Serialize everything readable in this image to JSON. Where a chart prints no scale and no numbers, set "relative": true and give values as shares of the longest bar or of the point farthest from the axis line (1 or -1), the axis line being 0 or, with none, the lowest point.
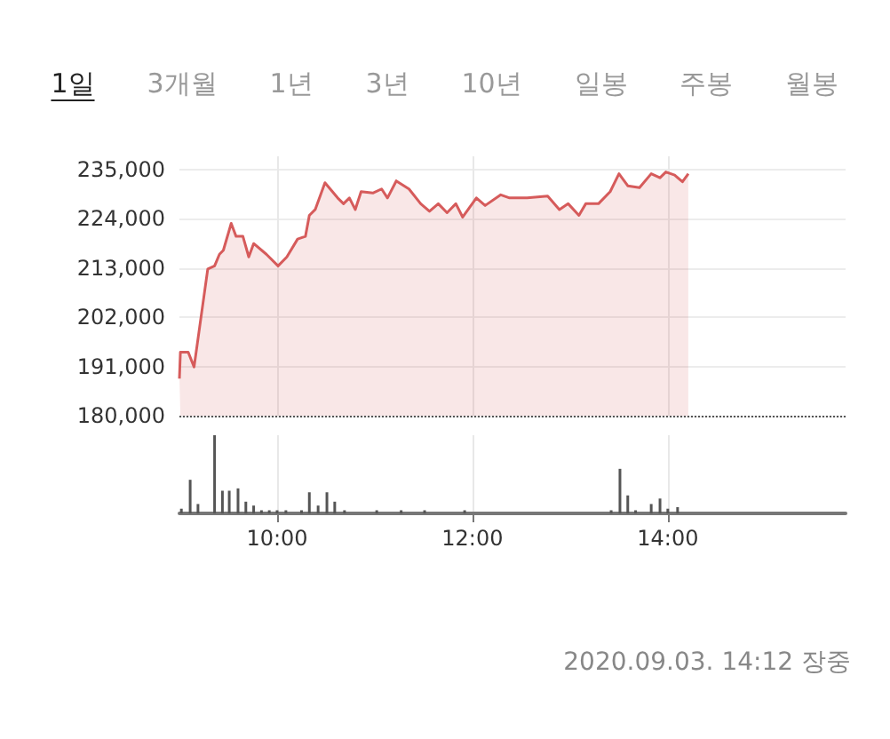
{
  "chart_data": [
    {
      "type": "area",
      "annotations": [
        "1일",
        "3개월",
        "1년",
        "3년",
        "10년",
        "일봉",
        "주봉",
        "월봉",
        "2020.09.03. 14:12 장중"
      ],
      "x": [
        9.0,
        9.01,
        9.09,
        9.15,
        9.29,
        9.36,
        9.41,
        9.45,
        9.53,
        9.58,
        9.65,
        9.71,
        9.76,
        9.89,
        10.01,
        10.1,
        10.21,
        10.29,
        10.33,
        10.39,
        10.49,
        10.62,
        10.68,
        10.74,
        10.8,
        10.86,
        10.98,
        11.07,
        11.13,
        11.22,
        11.35,
        11.47,
        11.56,
        11.65,
        11.74,
        11.83,
        11.9,
        12.04,
        12.13,
        12.29,
        12.38,
        12.56,
        12.77,
        12.89,
        12.98,
        13.09,
        13.16,
        13.29,
        13.41,
        13.5,
        13.59,
        13.71,
        13.83,
        13.92,
        13.98,
        14.07,
        14.15,
        14.21
      ],
      "series": [
        {
          "color": "#d65b5b",
          "values": [
            188300,
            194200,
            194200,
            190900,
            212800,
            213500,
            216100,
            217000,
            223000,
            220100,
            220100,
            215500,
            218500,
            216100,
            213500,
            215500,
            219500,
            220100,
            224800,
            226100,
            232100,
            228700,
            227400,
            228700,
            226100,
            230100,
            229800,
            230700,
            228700,
            232500,
            230700,
            227400,
            225700,
            227400,
            225400,
            227400,
            224400,
            228700,
            227000,
            229400,
            228700,
            228700,
            229100,
            226100,
            227400,
            224800,
            227400,
            227400,
            230100,
            234100,
            231400,
            231000,
            234100,
            233200,
            234500,
            233800,
            232300,
            234100
          ]
        }
      ],
      "xlim": [
        9,
        15.82
      ],
      "xticks": [
        10,
        12,
        14
      ],
      "ylim": [
        180000,
        238000
      ],
      "yticks": [
        {
          "value": 180000,
          "label": "180,000"
        },
        {
          "value": 191000,
          "label": "191,000"
        },
        {
          "value": 202000,
          "label": "202,000"
        },
        {
          "value": 213000,
          "label": "213,000"
        },
        {
          "value": 224000,
          "label": "224,000"
        },
        {
          "value": 235000,
          "label": "235,000"
        }
      ],
      "tick_labels": "y",
      "grid": true,
      "ref_lines": [
        {
          "axis": "y",
          "value": 180000,
          "color": "#555555",
          "line_style": "dotted"
        }
      ]
    },
    {
      "type": "bar",
      "relative": true,
      "x": [
        9.02,
        9.11,
        9.19,
        9.36,
        9.44,
        9.51,
        9.6,
        9.68,
        9.76,
        9.84,
        9.92,
        10.0,
        10.09,
        10.25,
        10.33,
        10.42,
        10.51,
        10.59,
        10.69,
        11.02,
        11.27,
        11.51,
        11.92,
        13.42,
        13.51,
        13.59,
        13.67,
        13.83,
        13.92,
        14.0,
        14.1
      ],
      "series": [
        {
          "color": "#555555",
          "values": [
            0.06,
            0.43,
            0.12,
            1,
            0.29,
            0.29,
            0.32,
            0.15,
            0.1,
            0.04,
            0.04,
            0.04,
            0.04,
            0.04,
            0.27,
            0.1,
            0.27,
            0.15,
            0.04,
            0.04,
            0.04,
            0.04,
            0.04,
            0.04,
            0.57,
            0.23,
            0.04,
            0.12,
            0.19,
            0.06,
            0.08
          ]
        }
      ],
      "xlim": [
        9,
        15.82
      ],
      "xticks": [
        {
          "value": 10,
          "label": "10:00"
        },
        {
          "value": 12,
          "label": "12:00"
        },
        {
          "value": 14,
          "label": "14:00"
        }
      ],
      "tick_labels": "x",
      "grid": "x"
    }
  ]
}
